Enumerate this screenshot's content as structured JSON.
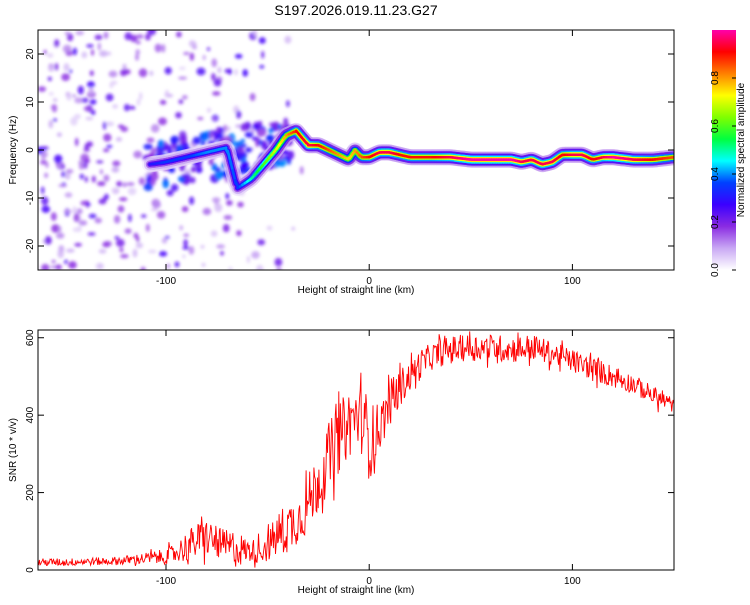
{
  "figure_title": "S197.2026.019.11.23.G27",
  "colorbar": {
    "label": "Normalized spectral amplitude",
    "ticks": [
      "0.0",
      "0.2",
      "0.4",
      "0.6",
      "0.8"
    ],
    "tick_values": [
      0.0,
      0.2,
      0.4,
      0.6,
      0.8
    ],
    "range": [
      0,
      1
    ],
    "stops": [
      "#ffffff",
      "#c9a8f4",
      "#8a2be2",
      "#3b00ff",
      "#0040ff",
      "#00ffff",
      "#00ff40",
      "#80ff00",
      "#ffff00",
      "#ff8000",
      "#ff0000",
      "#ff00aa"
    ]
  },
  "chart_data": [
    {
      "type": "heatmap",
      "title": "S197.2026.019.11.23.G27",
      "xlabel": "Height of straight line (km)",
      "ylabel": "Frequency (Hz)",
      "xlim": [
        -163,
        150
      ],
      "ylim": [
        -25,
        25
      ],
      "xticks": [
        -100,
        0,
        100
      ],
      "xtick_labels": [
        "-100",
        "0",
        "100"
      ],
      "yticks": [
        -20,
        -10,
        0,
        10,
        20
      ],
      "ytick_labels": [
        "-20",
        "-10",
        "0",
        "10",
        "20"
      ],
      "ridge": {
        "x": [
          -108,
          -100,
          -90,
          -80,
          -70,
          -65,
          -58,
          -52,
          -46,
          -41,
          -36,
          -30,
          -25,
          -20,
          -15,
          -10,
          -7,
          -4,
          0,
          5,
          10,
          15,
          20,
          30,
          40,
          50,
          60,
          70,
          75,
          80,
          85,
          90,
          95,
          100,
          105,
          110,
          115,
          120,
          130,
          140,
          150
        ],
        "y": [
          -3,
          -2.5,
          -1.5,
          -0.5,
          0.5,
          -8,
          -6,
          -3,
          0,
          3,
          4,
          1,
          1,
          0,
          -1,
          -2,
          0,
          -1.5,
          -1.5,
          -0.5,
          -0.5,
          -1,
          -1.5,
          -1.5,
          -1.5,
          -2,
          -2,
          -2,
          -2.5,
          -2,
          -3,
          -2.5,
          -1,
          -1,
          -1,
          -2,
          -1.5,
          -1.5,
          -2,
          -2,
          -1.5
        ],
        "amplitude": [
          0.3,
          0.35,
          0.35,
          0.4,
          0.4,
          0.35,
          0.5,
          0.6,
          0.7,
          0.8,
          0.9,
          0.95,
          0.9,
          0.85,
          0.8,
          0.75,
          0.8,
          0.85,
          0.9,
          0.95,
          0.95,
          0.9,
          0.9,
          0.9,
          0.95,
          1.0,
          1.0,
          1.0,
          0.95,
          0.95,
          0.95,
          0.95,
          0.9,
          0.95,
          0.95,
          0.9,
          0.95,
          1.0,
          0.95,
          0.9,
          0.85
        ]
      },
      "noise_region": {
        "x_range": [
          -163,
          -30
        ],
        "y_range": [
          -25,
          25
        ],
        "amplitude_range": [
          0.05,
          0.3
        ]
      }
    },
    {
      "type": "line",
      "title": "",
      "xlabel": "Height of straight line (km)",
      "ylabel": "SNR (10 * v/v)",
      "xlim": [
        -163,
        150
      ],
      "ylim": [
        0,
        620
      ],
      "xticks": [
        -100,
        0,
        100
      ],
      "xtick_labels": [
        "-100",
        "0",
        "100"
      ],
      "yticks": [
        0,
        200,
        400,
        600
      ],
      "ytick_labels": [
        "0",
        "200",
        "400",
        "600"
      ],
      "color": "#ff0000",
      "series": [
        {
          "name": "SNR",
          "x": [
            -163,
            -150,
            -140,
            -130,
            -120,
            -110,
            -100,
            -95,
            -90,
            -85,
            -80,
            -75,
            -70,
            -65,
            -60,
            -55,
            -50,
            -45,
            -40,
            -35,
            -30,
            -25,
            -20,
            -15,
            -10,
            -5,
            -2,
            0,
            3,
            6,
            10,
            15,
            20,
            25,
            30,
            40,
            50,
            60,
            70,
            80,
            90,
            100,
            110,
            120,
            130,
            140,
            150
          ],
          "y": [
            20,
            20,
            22,
            22,
            25,
            30,
            35,
            45,
            60,
            75,
            85,
            70,
            60,
            55,
            50,
            50,
            60,
            90,
            110,
            130,
            170,
            230,
            290,
            340,
            380,
            400,
            370,
            330,
            350,
            380,
            430,
            470,
            500,
            530,
            550,
            570,
            575,
            575,
            570,
            575,
            560,
            540,
            520,
            500,
            480,
            450,
            425
          ],
          "noise_amplitude": [
            10,
            10,
            10,
            10,
            12,
            15,
            20,
            25,
            40,
            45,
            50,
            40,
            45,
            50,
            30,
            30,
            40,
            60,
            70,
            60,
            80,
            80,
            90,
            90,
            90,
            80,
            100,
            100,
            80,
            60,
            60,
            50,
            40,
            40,
            35,
            35,
            35,
            35,
            35,
            35,
            30,
            30,
            30,
            30,
            25,
            25,
            20
          ]
        }
      ]
    }
  ]
}
